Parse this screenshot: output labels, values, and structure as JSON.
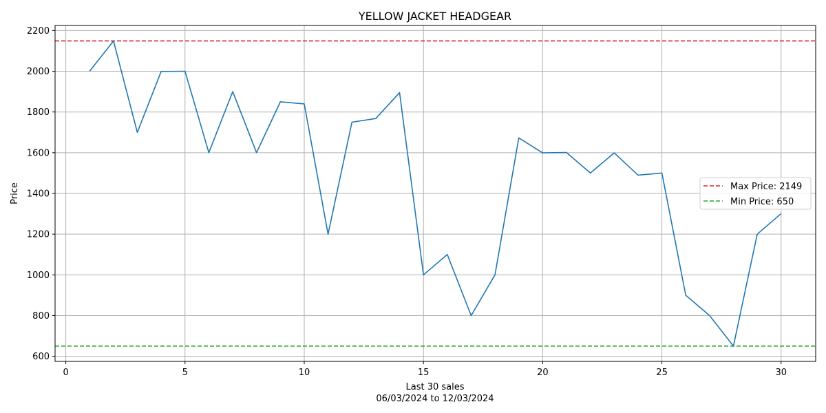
{
  "chart_data": {
    "type": "line",
    "title": "YELLOW JACKET HEADGEAR",
    "xlabel": "Last 30 sales",
    "xlabel_sub": "06/03/2024 to 12/03/2024",
    "ylabel": "Price",
    "xlim": [
      -0.45,
      31.45
    ],
    "ylim": [
      575,
      2225
    ],
    "xticks": [
      0,
      5,
      10,
      15,
      20,
      25,
      30
    ],
    "yticks": [
      600,
      800,
      1000,
      1200,
      1400,
      1600,
      1800,
      2000,
      2200
    ],
    "grid": true,
    "legend_position": "center-right",
    "series": [
      {
        "color": "#1f77b4",
        "x": [
          1,
          2,
          3,
          4,
          5,
          6,
          7,
          8,
          9,
          10,
          11,
          12,
          13,
          14,
          15,
          16,
          17,
          18,
          19,
          20,
          21,
          22,
          23,
          24,
          25,
          26,
          27,
          28,
          29,
          30
        ],
        "values": [
          2000,
          2149,
          1700,
          1999,
          2000,
          1600,
          1900,
          1600,
          1850,
          1840,
          1200,
          1750,
          1768,
          1895,
          1000,
          1100,
          800,
          1000,
          1673,
          1599,
          1601,
          1500,
          1599,
          1490,
          1500,
          900,
          800,
          650,
          1200,
          1301
        ]
      }
    ],
    "reference_lines": [
      {
        "name": "Max Price: 2149",
        "value": 2149,
        "color": "#d62728",
        "style": "dashed"
      },
      {
        "name": "Min Price: 650",
        "value": 650,
        "color": "#2ca02c",
        "style": "dashed"
      }
    ]
  }
}
